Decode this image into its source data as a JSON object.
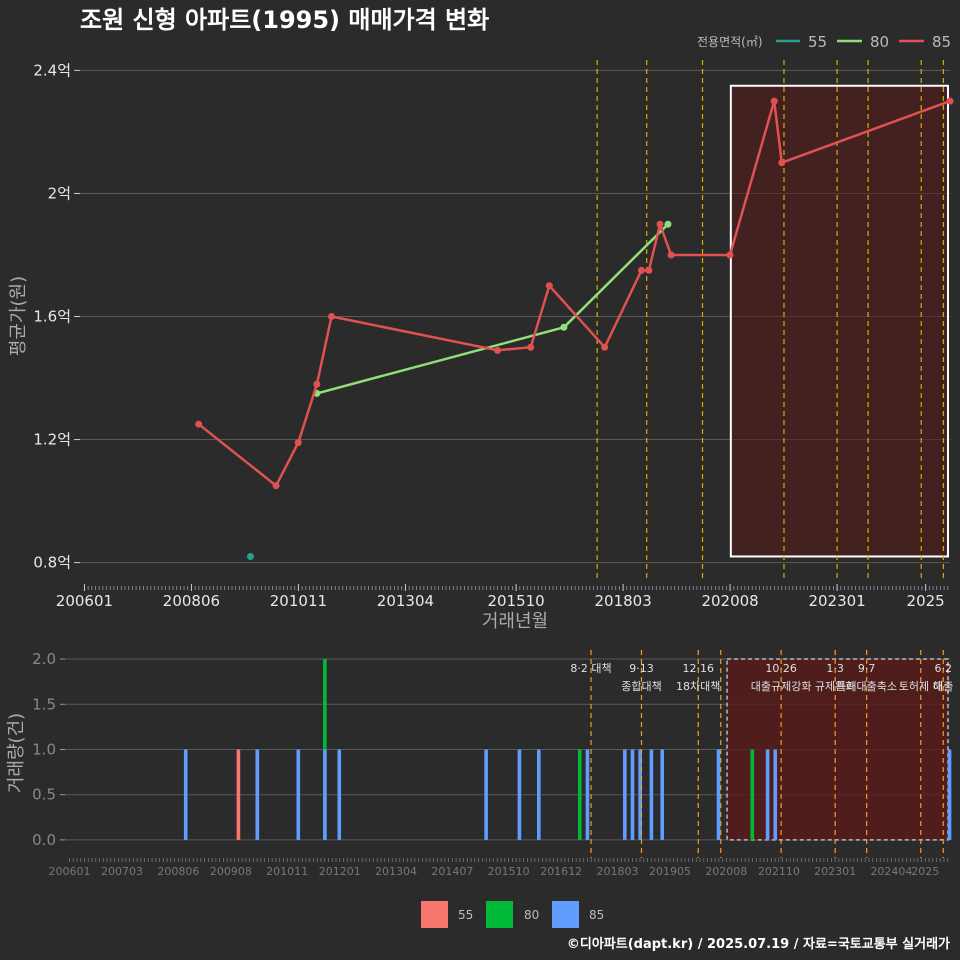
{
  "title": "조원 신형 아파트(1995) 매매가격 변화",
  "footer": "©디아파트(dapt.kr) / 2025.07.19 / 자료=국토교통부 실거래가",
  "colors": {
    "background": "#2b2b2b",
    "grid": "#5a5a5a",
    "s55_line": "#2a9d8f",
    "s80_line": "#90e07a",
    "s85_line": "#e05252",
    "bar55": "#f8766d",
    "bar80": "#00ba38",
    "bar85": "#619cff",
    "policy_line": "#d4b000",
    "event_line": "#f0a020",
    "highlight_fill": "#5a1a1a"
  },
  "chart_data": [
    {
      "type": "line",
      "title": "조원 신형 아파트(1995) 매매가격 변화",
      "xlabel": "거래년월",
      "ylabel": "평균가(원)",
      "ylim": [
        0.75,
        2.45
      ],
      "yticks": [
        "0.8억",
        "1.2억",
        "1.6억",
        "2억",
        "2.4억"
      ],
      "ytick_values": [
        0.8,
        1.2,
        1.6,
        2.0,
        2.4
      ],
      "xticks": [
        "200601",
        "200806",
        "201011",
        "201304",
        "201510",
        "201803",
        "202008",
        "202301",
        "2025"
      ],
      "xtick_values": [
        2006.0,
        2008.417,
        2010.833,
        2013.25,
        2015.75,
        2018.167,
        2020.583,
        2023.0,
        2025.0
      ],
      "xlim": [
        2005.9,
        2025.55
      ],
      "legend_title": "전용면적(㎡)",
      "legend_position": "top-right",
      "policy_lines": [
        2017.58,
        2018.7,
        2019.96,
        2021.8,
        2023.0,
        2023.7,
        2024.9,
        2025.4
      ],
      "highlight_range": [
        2020.6,
        2025.55
      ],
      "series": [
        {
          "name": "55",
          "points": [
            {
              "x": 2009.75,
              "y": 0.82
            }
          ]
        },
        {
          "name": "80",
          "points": [
            {
              "x": 2011.25,
              "y": 1.35
            },
            {
              "x": 2016.83,
              "y": 1.565
            },
            {
              "x": 2019.18,
              "y": 1.9
            }
          ]
        },
        {
          "name": "85",
          "points": [
            {
              "x": 2008.58,
              "y": 1.25
            },
            {
              "x": 2010.33,
              "y": 1.05
            },
            {
              "x": 2010.83,
              "y": 1.19
            },
            {
              "x": 2011.25,
              "y": 1.38
            },
            {
              "x": 2011.58,
              "y": 1.6
            },
            {
              "x": 2015.33,
              "y": 1.49
            },
            {
              "x": 2016.08,
              "y": 1.5
            },
            {
              "x": 2016.5,
              "y": 1.7
            },
            {
              "x": 2017.75,
              "y": 1.5
            },
            {
              "x": 2018.58,
              "y": 1.75
            },
            {
              "x": 2018.75,
              "y": 1.75
            },
            {
              "x": 2019.0,
              "y": 1.9
            },
            {
              "x": 2019.25,
              "y": 1.8
            },
            {
              "x": 2020.58,
              "y": 1.8
            },
            {
              "x": 2021.58,
              "y": 2.3
            },
            {
              "x": 2021.75,
              "y": 2.1
            },
            {
              "x": 2025.55,
              "y": 2.3
            }
          ]
        }
      ]
    },
    {
      "type": "bar",
      "xlabel": "",
      "ylabel": "거래량(건)",
      "ylim": [
        -0.2,
        2.1
      ],
      "yticks": [
        "0.0",
        "0.5",
        "1.0",
        "1.5",
        "2.0"
      ],
      "ytick_values": [
        0.0,
        0.5,
        1.0,
        1.5,
        2.0
      ],
      "xticks": [
        "200601",
        "200703",
        "200806",
        "200908",
        "201011",
        "201201",
        "201304",
        "201407",
        "201510",
        "201612",
        "201803",
        "201905",
        "202008",
        "202110",
        "202301",
        "202404",
        "2025"
      ],
      "xtick_values": [
        2006.0,
        2007.167,
        2008.417,
        2009.583,
        2010.833,
        2012.0,
        2013.25,
        2014.5,
        2015.75,
        2016.917,
        2018.167,
        2019.333,
        2020.583,
        2021.75,
        2023.0,
        2024.25,
        2025.0
      ],
      "xlim": [
        2005.9,
        2025.55
      ],
      "legend_position": "bottom",
      "legend": [
        "55",
        "80",
        "85"
      ],
      "highlight_range": [
        2020.6,
        2025.55
      ],
      "bars": [
        {
          "x": 2008.58,
          "series": "85",
          "value": 1
        },
        {
          "x": 2009.75,
          "series": "55",
          "value": 1
        },
        {
          "x": 2010.17,
          "series": "85",
          "value": 1
        },
        {
          "x": 2011.08,
          "series": "85",
          "value": 1
        },
        {
          "x": 2011.67,
          "series": "80",
          "value": 2
        },
        {
          "x": 2011.67,
          "series": "85",
          "value": 1
        },
        {
          "x": 2011.99,
          "series": "85",
          "value": 1
        },
        {
          "x": 2015.25,
          "series": "85",
          "value": 1
        },
        {
          "x": 2015.99,
          "series": "85",
          "value": 1
        },
        {
          "x": 2016.42,
          "series": "85",
          "value": 1
        },
        {
          "x": 2017.33,
          "series": "80",
          "value": 1
        },
        {
          "x": 2017.5,
          "series": "85",
          "value": 1
        },
        {
          "x": 2018.33,
          "series": "85",
          "value": 1
        },
        {
          "x": 2018.5,
          "series": "85",
          "value": 1
        },
        {
          "x": 2018.67,
          "series": "85",
          "value": 1
        },
        {
          "x": 2018.92,
          "series": "85",
          "value": 1
        },
        {
          "x": 2019.16,
          "series": "85",
          "value": 1
        },
        {
          "x": 2020.41,
          "series": "85",
          "value": 1
        },
        {
          "x": 2021.16,
          "series": "80",
          "value": 1
        },
        {
          "x": 2021.5,
          "series": "85",
          "value": 1
        },
        {
          "x": 2021.67,
          "series": "85",
          "value": 1
        },
        {
          "x": 2025.54,
          "series": "85",
          "value": 1
        }
      ],
      "events": [
        {
          "x": 2017.58,
          "date": "8·2 대책",
          "name": ""
        },
        {
          "x": 2018.7,
          "date": "9·13",
          "name": "종합대책"
        },
        {
          "x": 2019.96,
          "date": "12·16",
          "name": "18차대책"
        },
        {
          "x": 2020.46,
          "date": "",
          "name": ""
        },
        {
          "x": 2021.8,
          "date": "10·26",
          "name": "대출규제강화"
        },
        {
          "x": 2023.0,
          "date": "1·3",
          "name": "규제완화"
        },
        {
          "x": 2023.7,
          "date": "9·7",
          "name": "특례대출축소"
        },
        {
          "x": 2024.9,
          "date": "",
          "name": "토허제 해"
        },
        {
          "x": 2025.4,
          "date": "6·2",
          "name": "대출"
        }
      ]
    }
  ]
}
